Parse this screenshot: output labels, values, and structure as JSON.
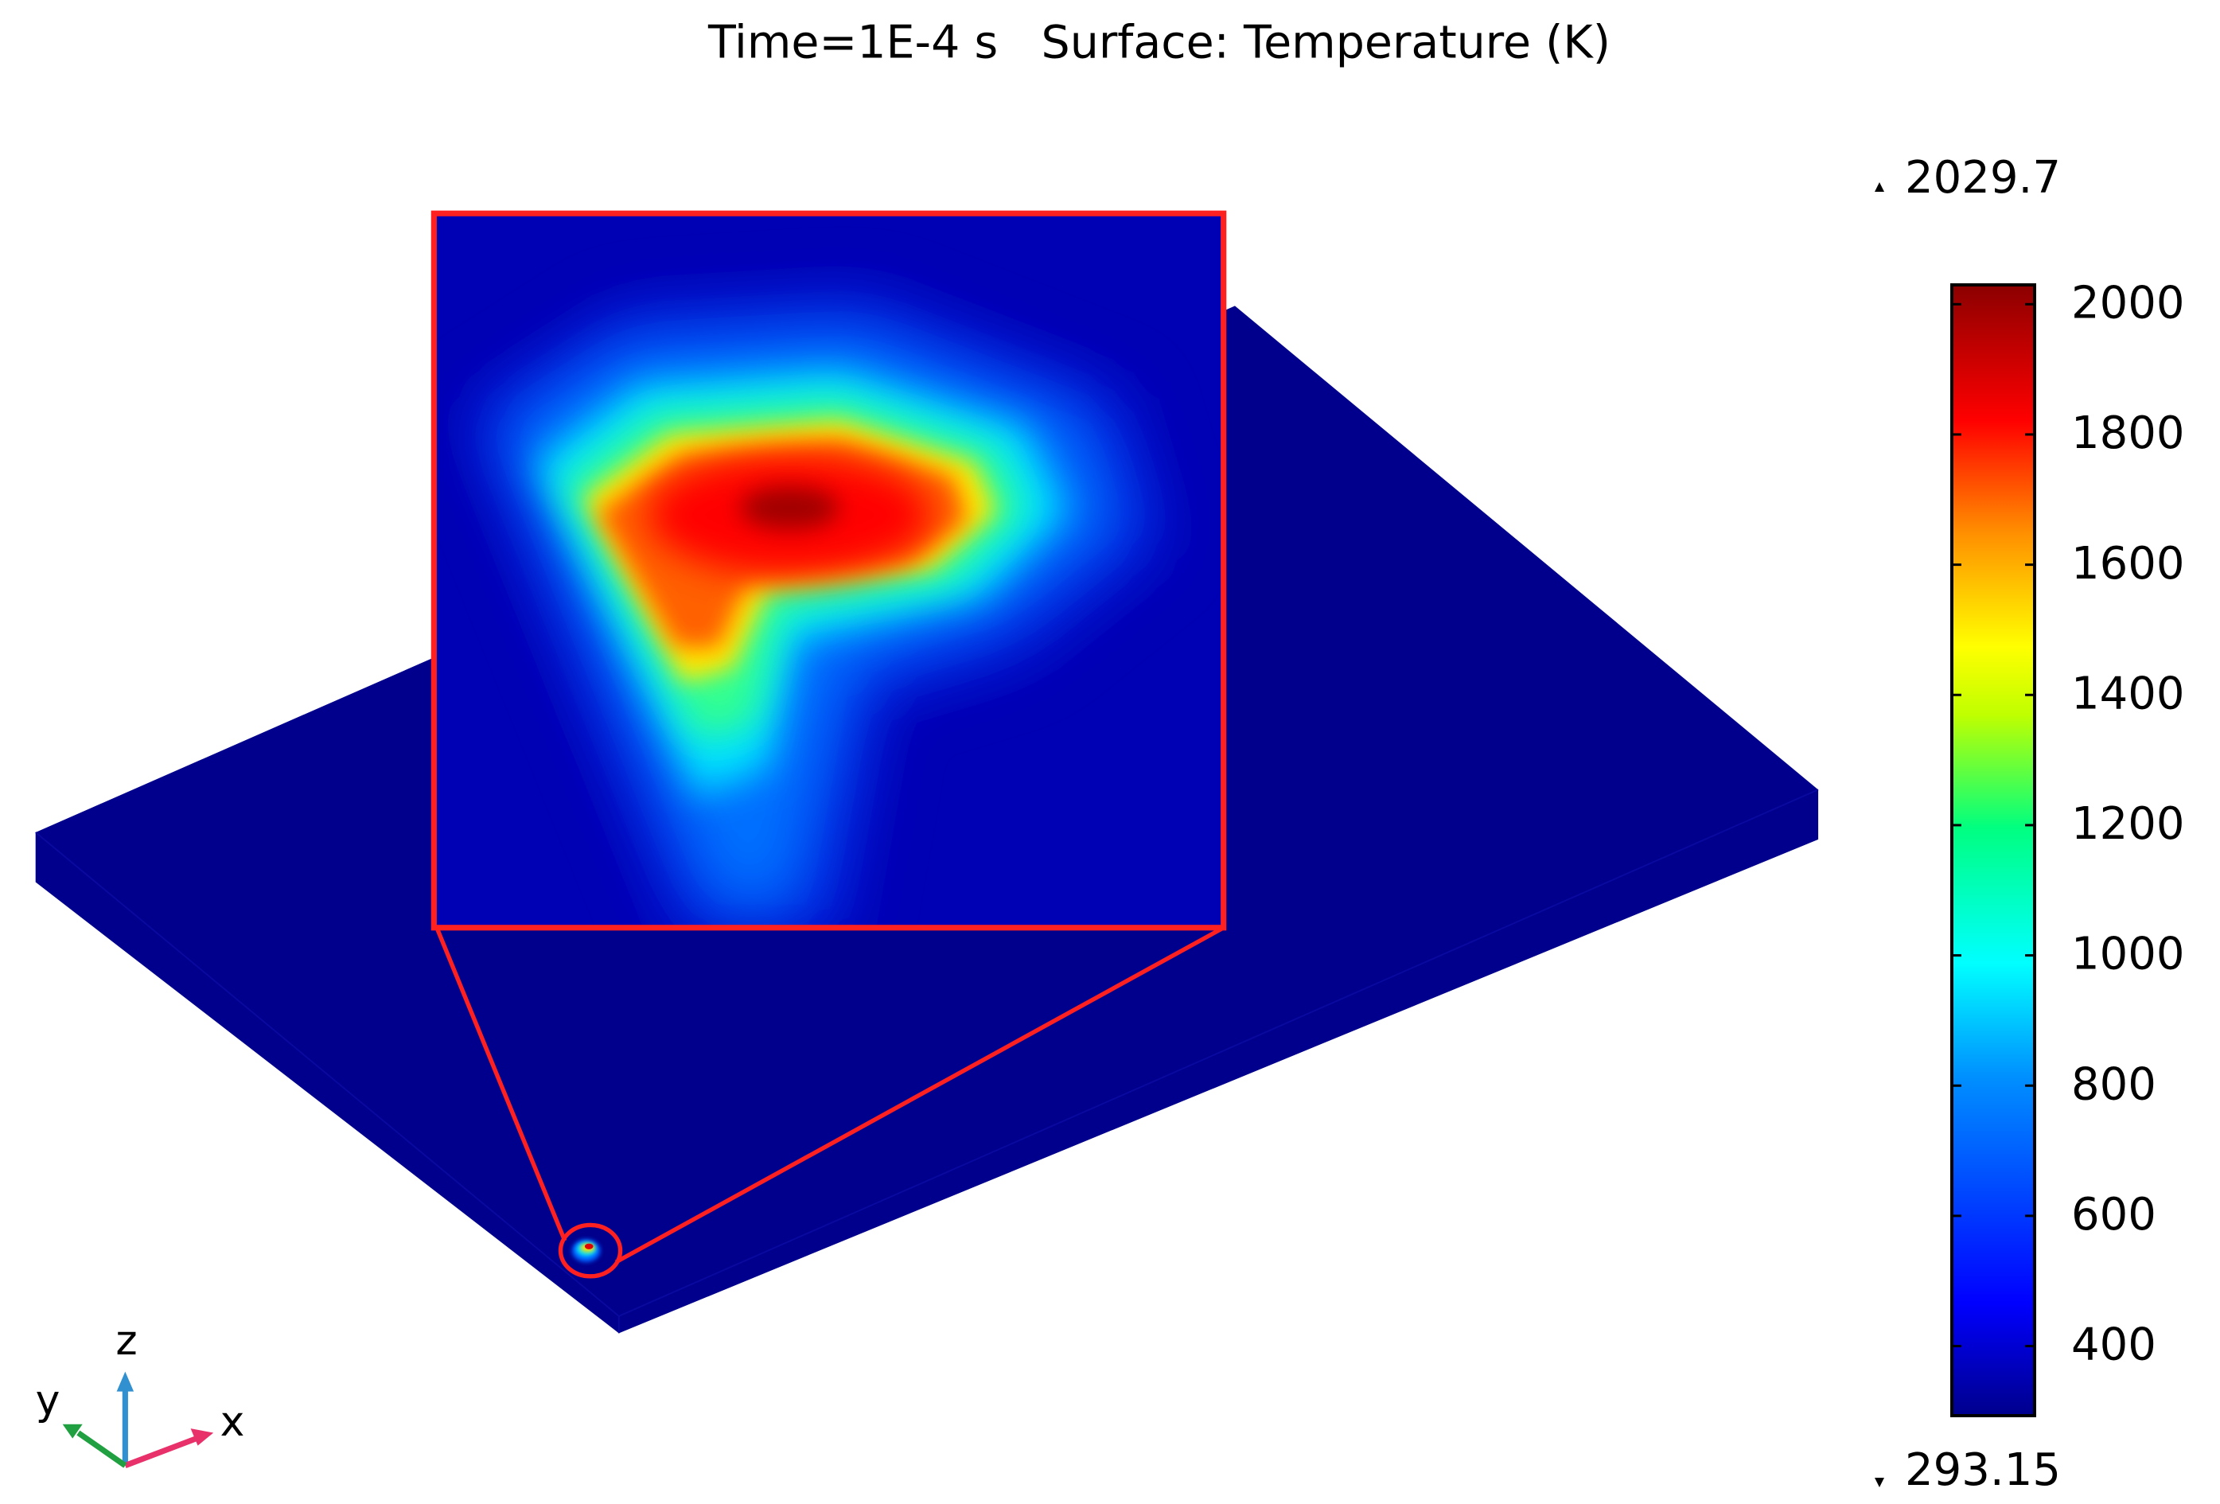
{
  "chart_data": {
    "type": "surface",
    "title": "Time=1E-4 s   Surface: Temperature (K)",
    "colorbar": {
      "min": 293.15,
      "max": 2029.7,
      "ticks": [
        400,
        600,
        800,
        1000,
        1200,
        1400,
        1600,
        1800,
        2000
      ],
      "colormap": "rainbow"
    },
    "axis_triad": {
      "x": "x",
      "y": "y",
      "z": "z"
    }
  }
}
